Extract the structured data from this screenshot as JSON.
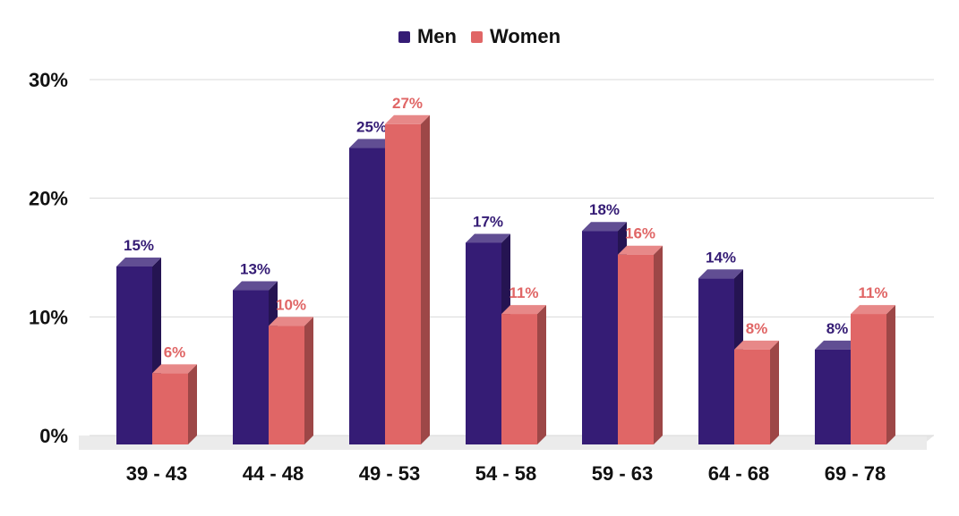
{
  "chart_data": {
    "type": "bar",
    "title": "",
    "xlabel": "",
    "ylabel": "",
    "ylim": [
      0,
      30
    ],
    "yticks": [
      0,
      10,
      20,
      30
    ],
    "ytick_labels": [
      "0%",
      "10%",
      "20%",
      "30%"
    ],
    "grid": true,
    "legend_position": "top-center",
    "categories": [
      "39 - 43",
      "44 - 48",
      "49 - 53",
      "54 - 58",
      "59 - 63",
      "64 - 68",
      "69 - 78"
    ],
    "series": [
      {
        "name": "Men",
        "color": "#351c75",
        "values": [
          15,
          13,
          25,
          17,
          18,
          14,
          8
        ],
        "labels": [
          "15%",
          "13%",
          "25%",
          "17%",
          "18%",
          "14%",
          "8%"
        ]
      },
      {
        "name": "Women",
        "color": "#e06666",
        "values": [
          6,
          10,
          27,
          11,
          16,
          8,
          11
        ],
        "labels": [
          "6%",
          "10%",
          "27%",
          "11%",
          "16%",
          "8%",
          "11%"
        ]
      }
    ]
  }
}
